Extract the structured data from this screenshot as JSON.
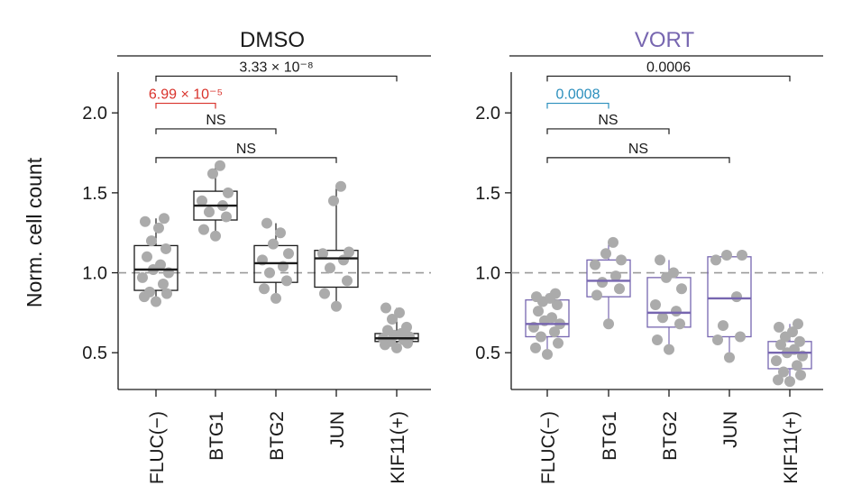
{
  "figure": {
    "ylabel": "Norm. cell count",
    "yticks": [
      0.5,
      1.0,
      1.5,
      2.0
    ],
    "ytick_labels": [
      "0.5",
      "1.0",
      "1.5",
      "2.0"
    ],
    "reference_line": 1.0
  },
  "chart_data": [
    {
      "type": "box",
      "title": "DMSO",
      "color": "#1a1a1a",
      "title_color": "#1a1a1a",
      "ylabel": "Norm. cell count",
      "ylim": [
        0.27,
        2.3
      ],
      "categories": [
        "FLUC(−)",
        "BTG1",
        "BTG2",
        "JUN",
        "KIF11(+)"
      ],
      "boxes": [
        {
          "q1": 0.89,
          "median": 1.02,
          "q3": 1.17,
          "whisker_low": 0.82,
          "whisker_high": 1.34,
          "points": [
            0.82,
            0.85,
            0.87,
            0.88,
            0.93,
            0.97,
            1.0,
            1.02,
            1.05,
            1.1,
            1.15,
            1.2,
            1.28,
            1.32,
            1.34
          ]
        },
        {
          "q1": 1.33,
          "median": 1.42,
          "q3": 1.51,
          "whisker_low": 1.23,
          "whisker_high": 1.67,
          "points": [
            1.23,
            1.27,
            1.35,
            1.38,
            1.42,
            1.45,
            1.5,
            1.62,
            1.67
          ]
        },
        {
          "q1": 0.94,
          "median": 1.06,
          "q3": 1.17,
          "whisker_low": 0.84,
          "whisker_high": 1.31,
          "points": [
            0.84,
            0.9,
            0.95,
            1.0,
            1.04,
            1.08,
            1.12,
            1.18,
            1.25,
            1.31
          ]
        },
        {
          "q1": 0.91,
          "median": 1.09,
          "q3": 1.14,
          "whisker_low": 0.79,
          "whisker_high": 1.54,
          "points": [
            0.79,
            0.87,
            0.95,
            1.03,
            1.08,
            1.12,
            1.13,
            1.45,
            1.54
          ]
        },
        {
          "q1": 0.57,
          "median": 0.59,
          "q3": 0.62,
          "whisker_low": 0.53,
          "whisker_high": 0.78,
          "points": [
            0.53,
            0.55,
            0.56,
            0.57,
            0.58,
            0.59,
            0.6,
            0.61,
            0.62,
            0.64,
            0.66,
            0.71,
            0.75,
            0.78
          ]
        }
      ],
      "brackets": [
        {
          "from": 0,
          "to": 1,
          "label": "6.99 × 10⁻⁵",
          "color": "#d9322b",
          "y": 2.06
        },
        {
          "from": 0,
          "to": 2,
          "label": "NS",
          "color": "#1a1a1a",
          "y": 1.9
        },
        {
          "from": 0,
          "to": 3,
          "label": "NS",
          "color": "#1a1a1a",
          "y": 1.72
        },
        {
          "from": 0,
          "to": 4,
          "label": "3.33 × 10⁻⁸",
          "color": "#1a1a1a",
          "y": 2.23
        }
      ]
    },
    {
      "type": "box",
      "title": "VORT",
      "color": "#7766b0",
      "title_color": "#7766b0",
      "ylabel": "",
      "ylim": [
        0.27,
        2.3
      ],
      "categories": [
        "FLUC(−)",
        "BTG1",
        "BTG2",
        "JUN",
        "KIF11(+)"
      ],
      "boxes": [
        {
          "q1": 0.6,
          "median": 0.68,
          "q3": 0.83,
          "whisker_low": 0.49,
          "whisker_high": 0.87,
          "points": [
            0.49,
            0.53,
            0.56,
            0.6,
            0.63,
            0.66,
            0.68,
            0.7,
            0.72,
            0.76,
            0.8,
            0.82,
            0.84,
            0.85,
            0.87
          ]
        },
        {
          "q1": 0.85,
          "median": 0.95,
          "q3": 1.08,
          "whisker_low": 0.68,
          "whisker_high": 1.19,
          "points": [
            0.68,
            0.86,
            0.9,
            0.94,
            0.98,
            1.05,
            1.08,
            1.12,
            1.19
          ]
        },
        {
          "q1": 0.66,
          "median": 0.75,
          "q3": 0.97,
          "whisker_low": 0.52,
          "whisker_high": 1.08,
          "points": [
            0.52,
            0.58,
            0.68,
            0.72,
            0.76,
            0.8,
            0.9,
            0.97,
            1.0,
            1.08
          ]
        },
        {
          "q1": 0.6,
          "median": 0.84,
          "q3": 1.1,
          "whisker_low": 0.47,
          "whisker_high": 1.11,
          "points": [
            0.47,
            0.58,
            0.6,
            0.67,
            0.85,
            1.08,
            1.11,
            1.11
          ]
        },
        {
          "q1": 0.4,
          "median": 0.5,
          "q3": 0.57,
          "whisker_low": 0.32,
          "whisker_high": 0.68,
          "points": [
            0.32,
            0.33,
            0.36,
            0.38,
            0.42,
            0.45,
            0.48,
            0.5,
            0.52,
            0.55,
            0.57,
            0.6,
            0.63,
            0.66,
            0.68
          ]
        }
      ],
      "brackets": [
        {
          "from": 0,
          "to": 1,
          "label": "0.0008",
          "color": "#2b8fbd",
          "y": 2.06
        },
        {
          "from": 0,
          "to": 2,
          "label": "NS",
          "color": "#1a1a1a",
          "y": 1.9
        },
        {
          "from": 0,
          "to": 3,
          "label": "NS",
          "color": "#1a1a1a",
          "y": 1.72
        },
        {
          "from": 0,
          "to": 4,
          "label": "0.0006",
          "color": "#1a1a1a",
          "y": 2.23
        }
      ]
    }
  ]
}
